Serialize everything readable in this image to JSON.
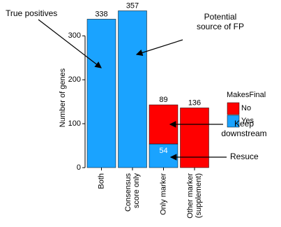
{
  "chart_data": {
    "type": "stacked_bar",
    "y_label": "Number of genes",
    "categories": [
      [
        "Both"
      ],
      [
        "Consensus",
        "score only"
      ],
      [
        "Only marker"
      ],
      [
        "Other marker",
        "(supplement)"
      ]
    ],
    "series": [
      {
        "name": "No",
        "color": "#ff0000",
        "values": [
          0,
          0,
          89,
          136
        ]
      },
      {
        "name": "Yes",
        "color": "#1aa3ff",
        "values": [
          338,
          357,
          54,
          0
        ]
      }
    ],
    "ylim": [
      0,
      380
    ],
    "yticks": [
      0,
      100,
      200,
      300
    ],
    "legend_title": "MakesFinal",
    "legend": "right",
    "annotations": [
      {
        "lines": [
          "True positives"
        ]
      },
      {
        "lines": [
          "Potential",
          "source of FP"
        ]
      },
      {
        "lines": [
          "Keep",
          "downstream"
        ]
      },
      {
        "lines": [
          "Resuce"
        ]
      }
    ]
  }
}
